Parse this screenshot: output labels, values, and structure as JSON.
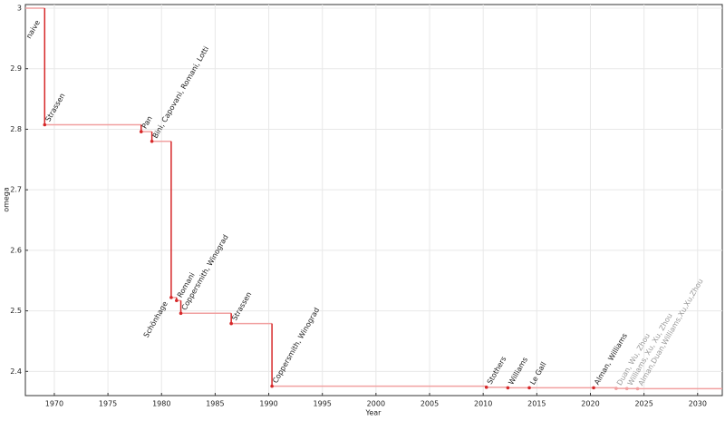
{
  "chart_data": {
    "type": "step",
    "x_label": "Year",
    "y_label": "omega",
    "x": [
      1967.3,
      1969.1,
      1978.1,
      1979.1,
      1980.9,
      1981.4,
      1981.8,
      1986.5,
      1990.3,
      2010.3,
      2012.3,
      2014.3,
      2020.3,
      2022.4,
      2023.4,
      2024.4
    ],
    "values": [
      3,
      2.8074,
      2.796,
      2.78,
      2.522,
      2.517,
      2.496,
      2.479,
      2.3755,
      2.3737,
      2.3729,
      2.37286,
      2.37286,
      2.371866,
      2.371552,
      2.371339
    ],
    "labels": [
      "naive",
      "Strassen",
      "Pan",
      "Bini, Capovani, Romani, Lotti",
      "Schönhage",
      "Romani",
      "Coppersmith, Winograd",
      "Strassen",
      "Coppersmith, Winograd",
      "Stothers",
      "Williams",
      "Le Gall",
      "Alman, Williams",
      "Duan, Wu, Zhou",
      "Williams, Xu, Xu, Zhou",
      "Alman,Duan,Williams,Xu,Xu,Zhou"
    ],
    "label_colors": [
      "#222",
      "#222",
      "#222",
      "#222",
      "#222",
      "#222",
      "#222",
      "#222",
      "#222",
      "#222",
      "#222",
      "#222",
      "#222",
      "#999",
      "#999",
      "#999"
    ],
    "color": "#d62728",
    "step_color": "#f1a0a0",
    "xlim": [
      1967.3,
      2032.3
    ],
    "ylim": [
      2.36,
      3.006
    ],
    "xticks": [
      1970,
      1975,
      1980,
      1985,
      1990,
      1995,
      2000,
      2005,
      2010,
      2015,
      2020,
      2025,
      2030
    ],
    "yticks": [
      2.4,
      2.5,
      2.6,
      2.7,
      2.8,
      2.9,
      3
    ],
    "grid": true
  }
}
